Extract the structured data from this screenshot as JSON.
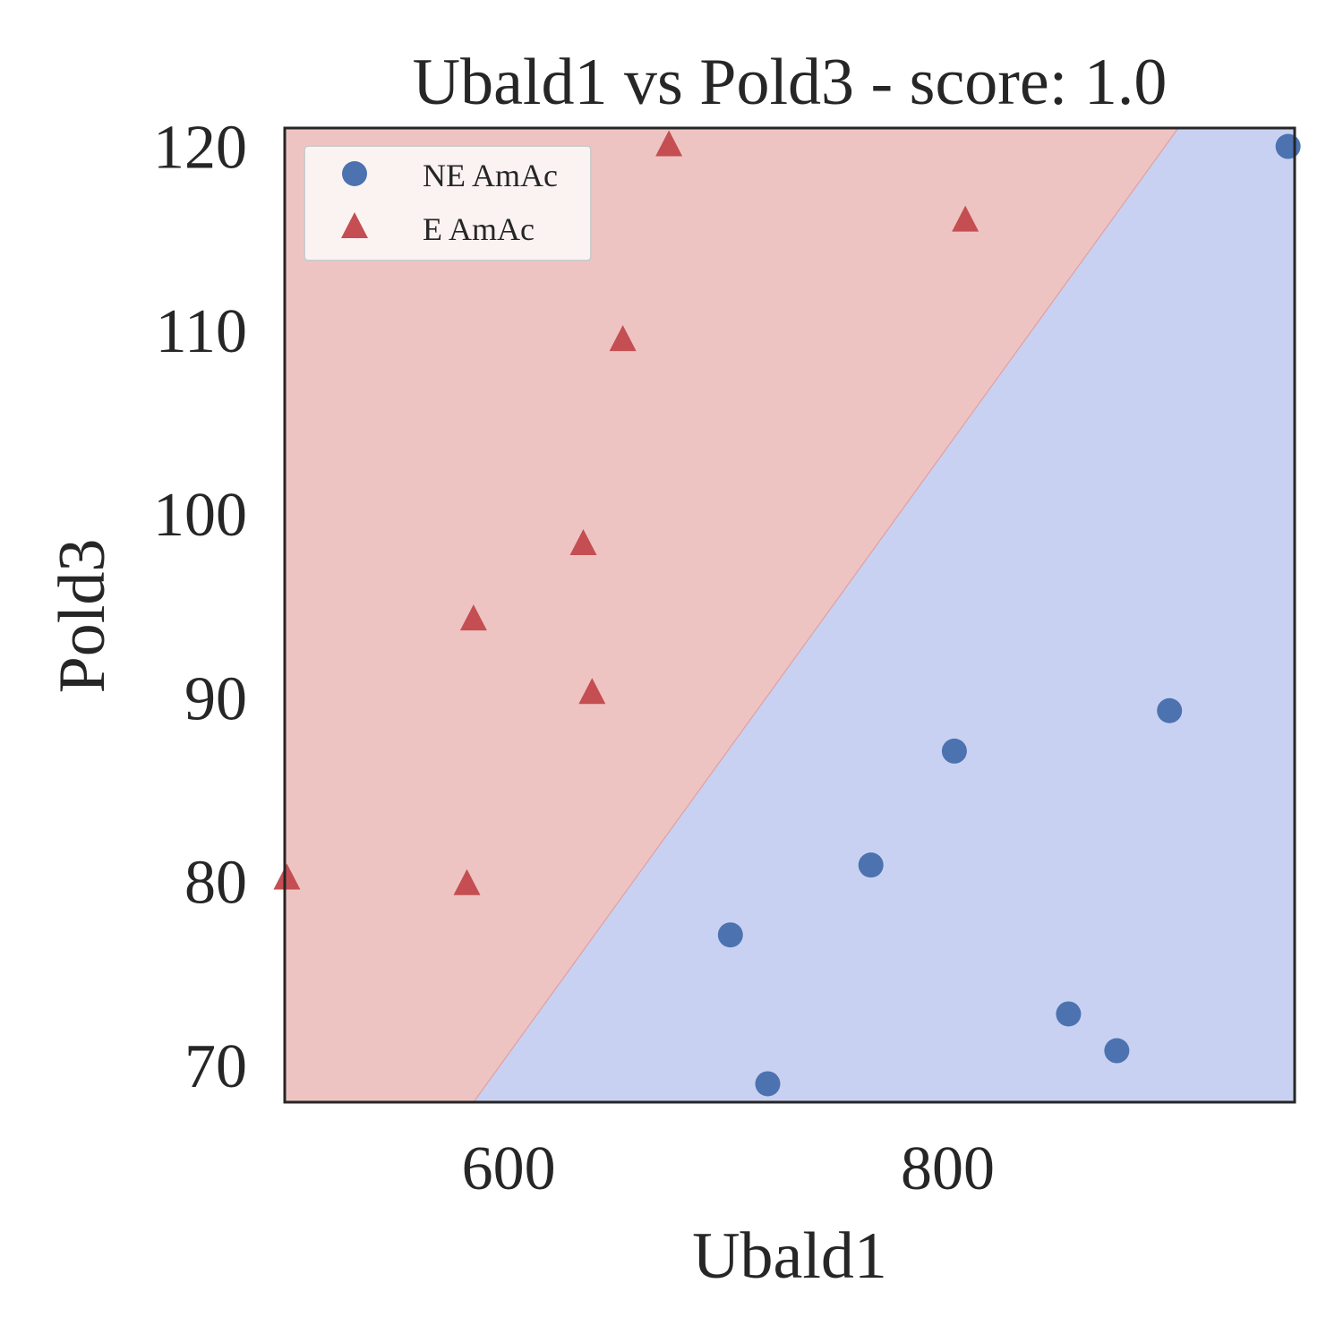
{
  "chart_data": {
    "type": "scatter",
    "title": "Ubald1 vs Pold3 - score: 1.0",
    "xlabel": "Ubald1",
    "ylabel": "Pold3",
    "xlim": [
      498,
      958
    ],
    "ylim": [
      68,
      121
    ],
    "x_ticks": [
      600,
      800
    ],
    "y_ticks": [
      70,
      80,
      90,
      100,
      110,
      120
    ],
    "x_tick_labels": [
      "600",
      "800"
    ],
    "y_tick_labels": [
      "70",
      "80",
      "90",
      "100",
      "110",
      "120"
    ],
    "grid": false,
    "legend_position": "top-left",
    "decision_boundary": {
      "points": [
        [
          584,
          68
        ],
        [
          905,
          121
        ]
      ],
      "upper_left_class": "E AmAc",
      "lower_right_class": "NE AmAc"
    },
    "series": [
      {
        "name": "NE AmAc",
        "marker": "circle",
        "color": "#4c72b0",
        "region_color": "#c9d1f2",
        "points": [
          [
            955,
            120.0
          ],
          [
            901,
            89.3
          ],
          [
            803,
            87.1
          ],
          [
            765,
            80.9
          ],
          [
            701,
            77.1
          ],
          [
            718,
            69.0
          ],
          [
            855,
            72.8
          ],
          [
            877,
            70.8
          ]
        ]
      },
      {
        "name": "E AmAc",
        "marker": "triangle",
        "color": "#c44e52",
        "region_color": "#eec4c3",
        "points": [
          [
            673,
            120.1
          ],
          [
            808,
            116.0
          ],
          [
            652,
            109.5
          ],
          [
            634,
            98.4
          ],
          [
            584,
            94.3
          ],
          [
            638,
            90.3
          ],
          [
            499,
            80.2
          ],
          [
            581,
            79.9
          ]
        ]
      }
    ]
  }
}
